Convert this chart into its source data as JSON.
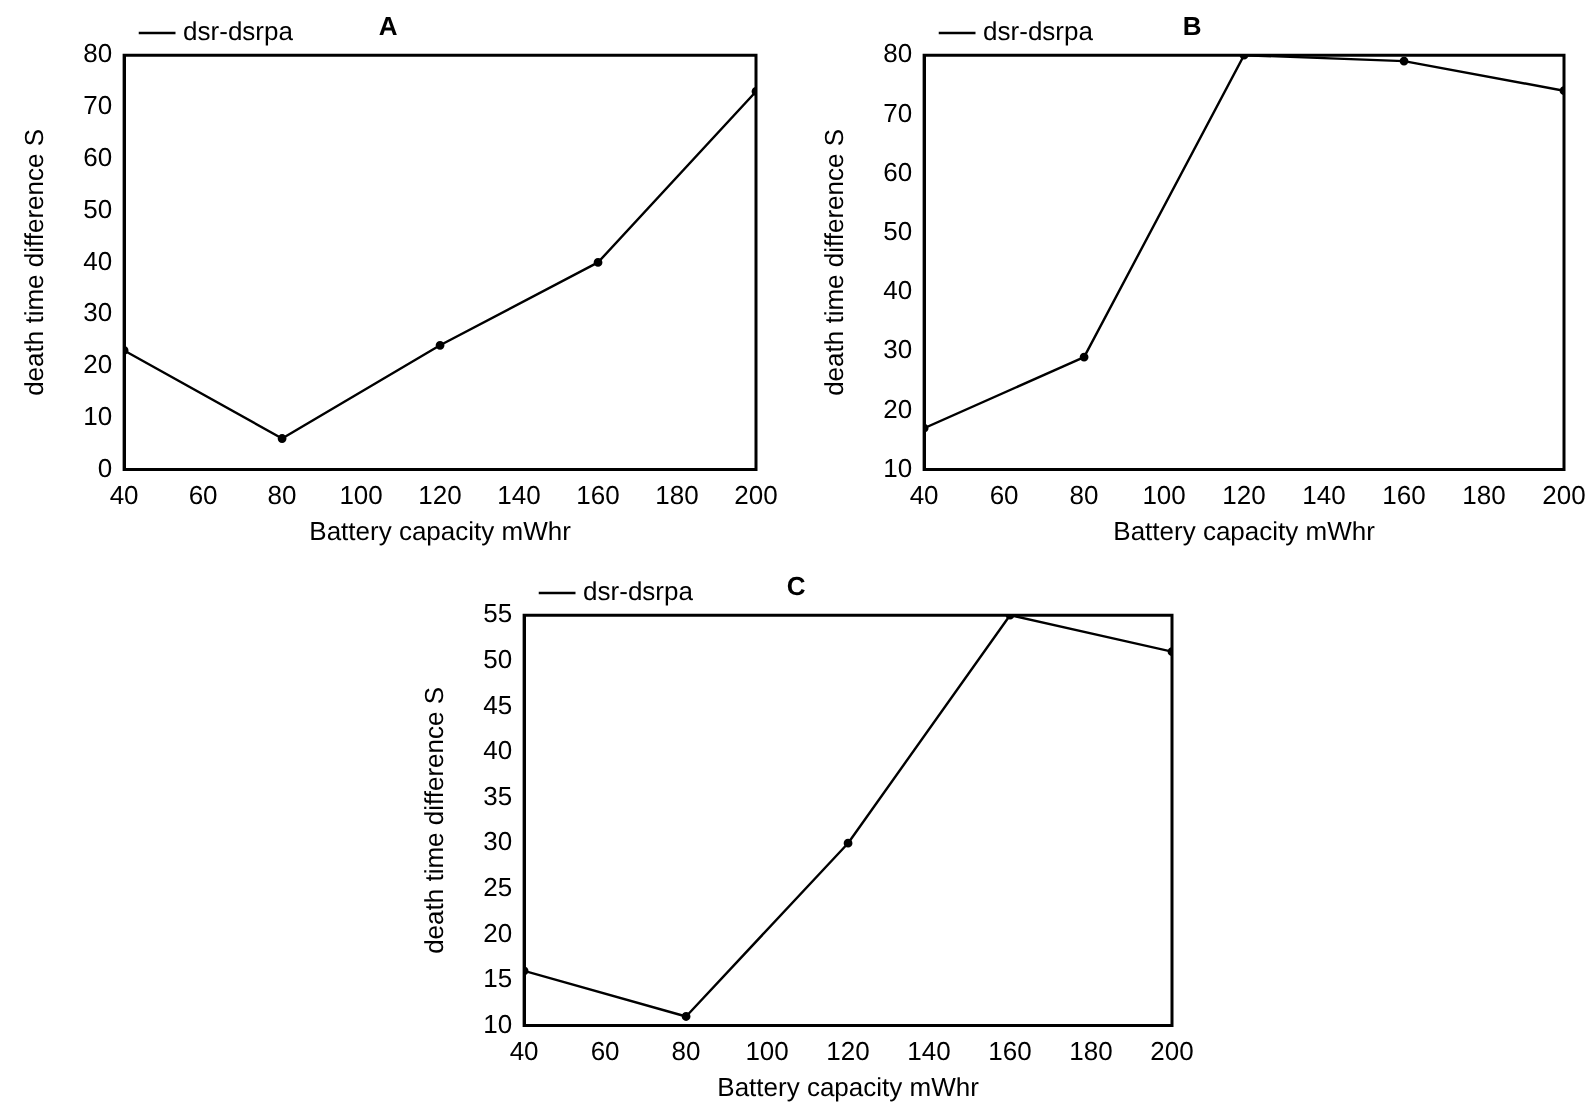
{
  "chart_data": [
    {
      "type": "line",
      "title": "A",
      "xlabel": "Battery capacity mWhr",
      "ylabel": "death time difference S",
      "x": [
        40,
        80,
        120,
        160,
        200
      ],
      "xlim": [
        40,
        200
      ],
      "xticks": [
        40,
        60,
        80,
        100,
        120,
        140,
        160,
        180,
        200
      ],
      "ylim": [
        0,
        80
      ],
      "yticks": [
        0,
        10,
        20,
        30,
        40,
        50,
        60,
        70,
        80
      ],
      "legend": "top left",
      "marker": "circle",
      "line_style": "solid",
      "series": [
        {
          "name": "dsr-dsrpa",
          "color": "#000000",
          "values": [
            23,
            6,
            24,
            40,
            73
          ]
        }
      ]
    },
    {
      "type": "line",
      "title": "B",
      "xlabel": "Battery capacity mWhr",
      "ylabel": "death time difference S",
      "x": [
        40,
        80,
        120,
        160,
        200
      ],
      "xlim": [
        40,
        200
      ],
      "xticks": [
        40,
        60,
        80,
        100,
        120,
        140,
        160,
        180,
        200
      ],
      "ylim": [
        10,
        80
      ],
      "yticks": [
        10,
        20,
        30,
        40,
        50,
        60,
        70,
        80
      ],
      "legend": "top left",
      "marker": "circle",
      "line_style": "solid",
      "series": [
        {
          "name": "dsr-dsrpa",
          "color": "#000000",
          "values": [
            17,
            29,
            80,
            79,
            74
          ]
        }
      ]
    },
    {
      "type": "line",
      "title": "C",
      "xlabel": "Battery capacity mWhr",
      "ylabel": "death time difference S",
      "x": [
        40,
        80,
        120,
        160,
        200
      ],
      "xlim": [
        40,
        200
      ],
      "xticks": [
        40,
        60,
        80,
        100,
        120,
        140,
        160,
        180,
        200
      ],
      "ylim": [
        10,
        55
      ],
      "yticks": [
        10,
        15,
        20,
        25,
        30,
        35,
        40,
        45,
        50,
        55
      ],
      "legend": "top left",
      "marker": "circle",
      "line_style": "solid",
      "series": [
        {
          "name": "dsr-dsrpa",
          "color": "#000000",
          "values": [
            16,
            11,
            30,
            55,
            51
          ]
        }
      ]
    }
  ]
}
